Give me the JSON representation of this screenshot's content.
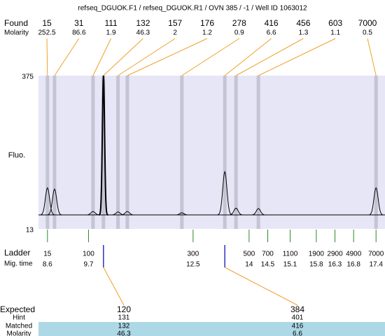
{
  "chart_data": {
    "type": "electropherogram",
    "title": "refseq_DGUOK.F1 / refseq_DGUOK.R1 / OVN 385 / -1 / Well ID 1063012",
    "found_label": "Found",
    "found_molarity_label": "Molarity",
    "found": [
      15,
      31,
      111,
      132,
      157,
      176,
      278,
      416,
      456,
      603,
      7000
    ],
    "found_molarity": [
      252.5,
      86.6,
      1.9,
      46.3,
      2,
      1.2,
      0.9,
      6.6,
      1.3,
      1.1,
      0.5
    ],
    "found_time": [
      8.6,
      8.79,
      9.82,
      10.1,
      10.49,
      10.74,
      12.2,
      13.35,
      13.65,
      14.25,
      17.4
    ],
    "found_height": [
      110,
      107,
      54,
      375,
      53,
      54,
      51,
      148,
      62,
      61,
      110
    ],
    "baseline": 46,
    "y_label": "Fluo.",
    "ylim": [
      13,
      375
    ],
    "yticks": [
      13,
      375
    ],
    "xlim": [
      8.36,
      17.64
    ],
    "ladder_label": "Ladder",
    "mig_time_label": "Mig. time",
    "ladder": [
      15,
      100,
      300,
      500,
      700,
      1100,
      1900,
      2900,
      4900,
      7000
    ],
    "ladder_time": [
      8.6,
      9.7,
      12.5,
      14,
      14.5,
      15.1,
      15.8,
      16.3,
      16.8,
      17.4
    ],
    "expected_label": "Expected",
    "hint_label": "Hint",
    "matched_label": "Matched",
    "matched_molarity_label": "Molarity",
    "expected": [
      120,
      384
    ],
    "hint": [
      131,
      401
    ],
    "matched": [
      132,
      416
    ],
    "matched_molarity": [
      46.3,
      6.6
    ]
  }
}
